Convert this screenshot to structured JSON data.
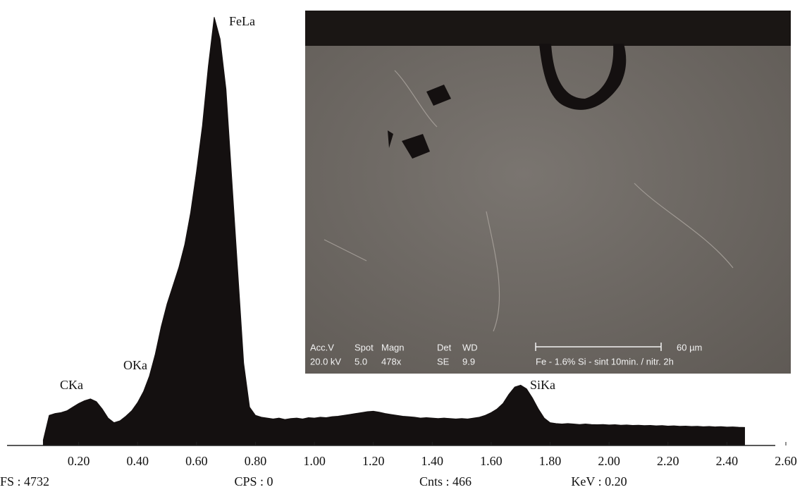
{
  "chart_data": {
    "type": "area",
    "color": "#141010",
    "x": [
      0.08,
      0.1,
      0.12,
      0.14,
      0.16,
      0.18,
      0.2,
      0.22,
      0.24,
      0.26,
      0.28,
      0.3,
      0.32,
      0.34,
      0.36,
      0.38,
      0.4,
      0.42,
      0.44,
      0.46,
      0.48,
      0.5,
      0.52,
      0.54,
      0.56,
      0.58,
      0.6,
      0.62,
      0.64,
      0.66,
      0.68,
      0.7,
      0.72,
      0.74,
      0.76,
      0.78,
      0.8,
      0.82,
      0.84,
      0.86,
      0.88,
      0.9,
      0.92,
      0.94,
      0.96,
      0.98,
      1.0,
      1.02,
      1.04,
      1.06,
      1.08,
      1.1,
      1.12,
      1.14,
      1.16,
      1.18,
      1.2,
      1.22,
      1.24,
      1.26,
      1.28,
      1.3,
      1.32,
      1.34,
      1.36,
      1.38,
      1.4,
      1.42,
      1.44,
      1.46,
      1.48,
      1.5,
      1.52,
      1.54,
      1.56,
      1.58,
      1.6,
      1.62,
      1.64,
      1.66,
      1.68,
      1.7,
      1.72,
      1.74,
      1.76,
      1.78,
      1.8,
      1.82,
      1.84,
      1.86,
      1.88,
      1.9,
      1.92,
      1.94,
      1.96,
      1.98,
      2.0,
      2.02,
      2.04,
      2.06,
      2.08,
      2.1,
      2.12,
      2.14,
      2.16,
      2.18,
      2.2,
      2.22,
      2.24,
      2.26,
      2.28,
      2.3,
      2.32,
      2.34,
      2.36,
      2.38,
      2.4,
      2.42,
      2.44,
      2.46
    ],
    "values": [
      60,
      330,
      350,
      360,
      380,
      420,
      460,
      490,
      510,
      480,
      400,
      300,
      250,
      270,
      320,
      380,
      470,
      590,
      760,
      1000,
      1300,
      1550,
      1750,
      1950,
      2200,
      2550,
      3000,
      3500,
      4150,
      4690,
      4450,
      3900,
      2900,
      1900,
      900,
      420,
      330,
      310,
      300,
      290,
      300,
      285,
      295,
      300,
      290,
      305,
      300,
      310,
      305,
      315,
      320,
      330,
      340,
      350,
      360,
      370,
      375,
      365,
      350,
      340,
      330,
      320,
      315,
      310,
      300,
      305,
      300,
      295,
      300,
      295,
      290,
      295,
      290,
      300,
      310,
      330,
      360,
      400,
      460,
      560,
      640,
      660,
      620,
      520,
      400,
      300,
      250,
      240,
      235,
      240,
      235,
      230,
      235,
      230,
      228,
      230,
      225,
      228,
      222,
      225,
      220,
      222,
      218,
      220,
      215,
      218,
      212,
      215,
      210,
      212,
      208,
      210,
      205,
      208,
      204,
      206,
      202,
      204,
      200,
      198
    ],
    "xlim": [
      0,
      2.6
    ],
    "ylim": [
      0,
      4800
    ],
    "xticks": [
      {
        "value": 0.2,
        "label": "0.20"
      },
      {
        "value": 0.4,
        "label": "0.40"
      },
      {
        "value": 0.6,
        "label": "0.60"
      },
      {
        "value": 0.8,
        "label": "0.80"
      },
      {
        "value": 1.0,
        "label": "1.00"
      },
      {
        "value": 1.2,
        "label": "1.20"
      },
      {
        "value": 1.4,
        "label": "1.40"
      },
      {
        "value": 1.6,
        "label": "1.60"
      },
      {
        "value": 1.8,
        "label": "1.80"
      },
      {
        "value": 2.0,
        "label": "2.00"
      },
      {
        "value": 2.2,
        "label": "2.20"
      },
      {
        "value": 2.4,
        "label": "2.40"
      },
      {
        "value": 2.6,
        "label": "2.60"
      }
    ],
    "annotations": [
      "CKa",
      "OKa",
      "FeLa",
      "SiKa"
    ],
    "status": [
      "FS : 4732",
      "CPS : 0",
      "Cnts : 466",
      "KeV : 0.20"
    ],
    "inset": {
      "headers": [
        "Acc.V",
        "Spot",
        "Magn",
        "Det",
        "WD"
      ],
      "readings": [
        "20.0 kV",
        "5.0",
        "478x",
        "SE",
        "9.9"
      ],
      "scale_bar": "60 µm",
      "caption": "Fe - 1.6% Si - sint 10min. / nitr. 2h"
    }
  }
}
